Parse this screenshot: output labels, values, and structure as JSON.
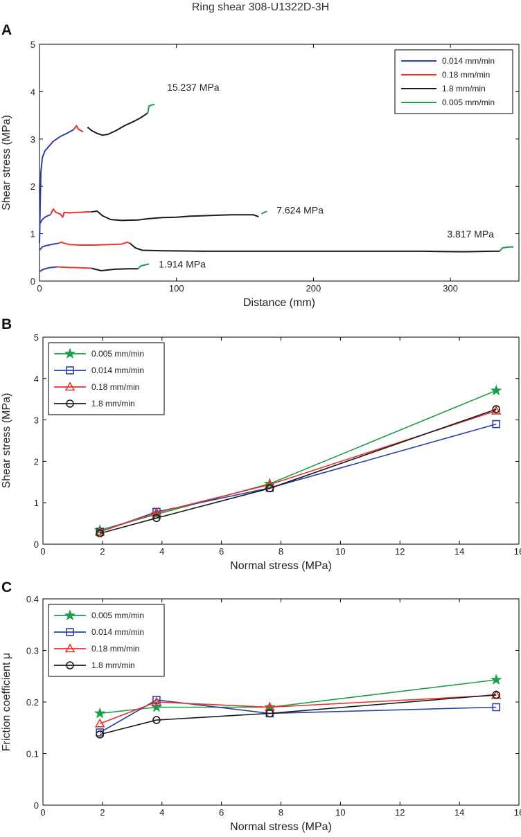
{
  "figure_title": "Ring shear 308-U1322D-3H",
  "chart_data": [
    {
      "panel": "A",
      "type": "line",
      "xlabel": "Distance (mm)",
      "ylabel": "Shear stress (MPa)",
      "xlim": [
        0,
        350
      ],
      "ylim": [
        0,
        5
      ],
      "xticks": [
        0,
        100,
        200,
        300
      ],
      "yticks": [
        0,
        1,
        2,
        3,
        4,
        5
      ],
      "legend_position": "top-right",
      "legend": [
        {
          "label": "0.014 mm/min",
          "color": "#2b3ea8"
        },
        {
          "label": "0.18 mm/min",
          "color": "#e8322b"
        },
        {
          "label": "1.8 mm/min",
          "color": "#1a1a1a"
        },
        {
          "label": "0.005 mm/min",
          "color": "#1a9e47"
        }
      ],
      "curves": [
        {
          "normal_stress_label": "15.237 MPa",
          "segments": [
            {
              "color": "#2b3ea8",
              "points": [
                [
                  0,
                  0.8
                ],
                [
                  0.5,
                  1.6
                ],
                [
                  1,
                  2.3
                ],
                [
                  2,
                  2.6
                ],
                [
                  4,
                  2.75
                ],
                [
                  7,
                  2.85
                ],
                [
                  10,
                  2.95
                ],
                [
                  15,
                  3.05
                ],
                [
                  20,
                  3.12
                ],
                [
                  25,
                  3.2
                ]
              ]
            },
            {
              "color": "#e8322b",
              "points": [
                [
                  25,
                  3.2
                ],
                [
                  27,
                  3.28
                ],
                [
                  28,
                  3.22
                ],
                [
                  30,
                  3.18
                ],
                [
                  32,
                  3.15
                ]
              ]
            },
            {
              "color": "#1a1a1a",
              "points": [
                [
                  35,
                  3.25
                ],
                [
                  38,
                  3.18
                ],
                [
                  42,
                  3.12
                ],
                [
                  46,
                  3.08
                ],
                [
                  50,
                  3.1
                ],
                [
                  56,
                  3.18
                ],
                [
                  62,
                  3.28
                ],
                [
                  68,
                  3.36
                ],
                [
                  74,
                  3.45
                ],
                [
                  79,
                  3.55
                ]
              ]
            },
            {
              "color": "#1a9e47",
              "points": [
                [
                  79,
                  3.55
                ],
                [
                  80,
                  3.7
                ],
                [
                  82,
                  3.72
                ],
                [
                  84,
                  3.73
                ]
              ]
            }
          ]
        },
        {
          "normal_stress_label": "7.624 MPa",
          "segments": [
            {
              "color": "#2b3ea8",
              "points": [
                [
                  0,
                  1.2
                ],
                [
                  2,
                  1.3
                ],
                [
                  4,
                  1.35
                ],
                [
                  6,
                  1.38
                ],
                [
                  8,
                  1.4
                ]
              ]
            },
            {
              "color": "#e8322b",
              "points": [
                [
                  8,
                  1.4
                ],
                [
                  10,
                  1.52
                ],
                [
                  12,
                  1.45
                ],
                [
                  15,
                  1.42
                ],
                [
                  17,
                  1.35
                ],
                [
                  18,
                  1.45
                ],
                [
                  22,
                  1.44
                ],
                [
                  26,
                  1.45
                ],
                [
                  30,
                  1.45
                ],
                [
                  34,
                  1.46
                ],
                [
                  38,
                  1.46
                ]
              ]
            },
            {
              "color": "#1a1a1a",
              "points": [
                [
                  38,
                  1.46
                ],
                [
                  42,
                  1.48
                ],
                [
                  46,
                  1.38
                ],
                [
                  52,
                  1.3
                ],
                [
                  60,
                  1.28
                ],
                [
                  72,
                  1.29
                ],
                [
                  80,
                  1.32
                ],
                [
                  90,
                  1.34
                ],
                [
                  100,
                  1.35
                ],
                [
                  110,
                  1.37
                ],
                [
                  120,
                  1.38
                ],
                [
                  130,
                  1.39
                ],
                [
                  140,
                  1.4
                ],
                [
                  150,
                  1.4
                ],
                [
                  156,
                  1.4
                ],
                [
                  160,
                  1.36
                ]
              ]
            },
            {
              "color": "#1a9e47",
              "points": [
                [
                  162,
                  1.42
                ],
                [
                  164,
                  1.45
                ],
                [
                  166,
                  1.47
                ]
              ]
            }
          ]
        },
        {
          "normal_stress_label": "3.817 MPa",
          "segments": [
            {
              "color": "#2b3ea8",
              "points": [
                [
                  0,
                  0.65
                ],
                [
                  2,
                  0.72
                ],
                [
                  5,
                  0.75
                ],
                [
                  10,
                  0.78
                ],
                [
                  14,
                  0.8
                ]
              ]
            },
            {
              "color": "#e8322b",
              "points": [
                [
                  14,
                  0.8
                ],
                [
                  16,
                  0.82
                ],
                [
                  18,
                  0.8
                ],
                [
                  22,
                  0.77
                ],
                [
                  30,
                  0.76
                ],
                [
                  40,
                  0.76
                ],
                [
                  50,
                  0.77
                ],
                [
                  60,
                  0.78
                ],
                [
                  64,
                  0.82
                ],
                [
                  66,
                  0.8
                ]
              ]
            },
            {
              "color": "#1a1a1a",
              "points": [
                [
                  66,
                  0.8
                ],
                [
                  70,
                  0.7
                ],
                [
                  75,
                  0.65
                ],
                [
                  90,
                  0.64
                ],
                [
                  120,
                  0.63
                ],
                [
                  160,
                  0.63
                ],
                [
                  200,
                  0.63
                ],
                [
                  240,
                  0.63
                ],
                [
                  280,
                  0.63
                ],
                [
                  310,
                  0.62
                ],
                [
                  330,
                  0.63
                ],
                [
                  336,
                  0.63
                ]
              ]
            },
            {
              "color": "#1a9e47",
              "points": [
                [
                  336,
                  0.63
                ],
                [
                  338,
                  0.7
                ],
                [
                  342,
                  0.72
                ],
                [
                  346,
                  0.72
                ]
              ]
            }
          ]
        },
        {
          "normal_stress_label": "1.914 MPa",
          "segments": [
            {
              "color": "#2b3ea8",
              "points": [
                [
                  0,
                  0.2
                ],
                [
                  3,
                  0.25
                ],
                [
                  7,
                  0.28
                ],
                [
                  13,
                  0.3
                ]
              ]
            },
            {
              "color": "#e8322b",
              "points": [
                [
                  13,
                  0.3
                ],
                [
                  20,
                  0.29
                ],
                [
                  30,
                  0.28
                ],
                [
                  38,
                  0.27
                ]
              ]
            },
            {
              "color": "#1a1a1a",
              "points": [
                [
                  38,
                  0.27
                ],
                [
                  45,
                  0.22
                ],
                [
                  55,
                  0.25
                ],
                [
                  65,
                  0.26
                ],
                [
                  72,
                  0.26
                ]
              ]
            },
            {
              "color": "#1a9e47",
              "points": [
                [
                  72,
                  0.26
                ],
                [
                  74,
                  0.32
                ],
                [
                  78,
                  0.35
                ],
                [
                  80,
                  0.36
                ]
              ]
            }
          ]
        }
      ]
    },
    {
      "panel": "B",
      "type": "line",
      "xlabel": "Normal stress (MPa)",
      "ylabel": "Shear stress (MPa)",
      "xlim": [
        0,
        16
      ],
      "ylim": [
        0,
        5
      ],
      "xticks": [
        0,
        2,
        4,
        6,
        8,
        10,
        12,
        14,
        16
      ],
      "yticks": [
        0,
        1,
        2,
        3,
        4,
        5
      ],
      "legend_position": "top-left",
      "x": [
        1.914,
        3.817,
        7.624,
        15.237
      ],
      "series": [
        {
          "name": "0.005 mm/min",
          "color": "#1a9e47",
          "marker": "star",
          "values": [
            0.34,
            0.72,
            1.46,
            3.71
          ]
        },
        {
          "name": "0.014 mm/min",
          "color": "#2b3ea8",
          "marker": "square",
          "values": [
            0.3,
            0.78,
            1.36,
            2.9
          ]
        },
        {
          "name": "0.18 mm/min",
          "color": "#e8322b",
          "marker": "triangle",
          "values": [
            0.3,
            0.76,
            1.44,
            3.22
          ]
        },
        {
          "name": "1.8 mm/min",
          "color": "#1a1a1a",
          "marker": "circle",
          "values": [
            0.26,
            0.63,
            1.35,
            3.26
          ]
        }
      ]
    },
    {
      "panel": "C",
      "type": "line",
      "xlabel": "Normal stress (MPa)",
      "ylabel": "Friction coefficient μ",
      "xlim": [
        0,
        16
      ],
      "ylim": [
        0,
        0.4
      ],
      "xticks": [
        0,
        2,
        4,
        6,
        8,
        10,
        12,
        14,
        16
      ],
      "yticks": [
        0,
        0.1,
        0.2,
        0.3,
        0.4
      ],
      "legend_position": "top-left",
      "x": [
        1.914,
        3.817,
        7.624,
        15.237
      ],
      "series": [
        {
          "name": "0.005 mm/min",
          "color": "#1a9e47",
          "marker": "star",
          "values": [
            0.178,
            0.19,
            0.19,
            0.243
          ]
        },
        {
          "name": "0.014 mm/min",
          "color": "#2b3ea8",
          "marker": "square",
          "values": [
            0.141,
            0.204,
            0.178,
            0.19
          ]
        },
        {
          "name": "0.18 mm/min",
          "color": "#e8322b",
          "marker": "triangle",
          "values": [
            0.158,
            0.2,
            0.19,
            0.213
          ]
        },
        {
          "name": "1.8 mm/min",
          "color": "#1a1a1a",
          "marker": "circle",
          "values": [
            0.137,
            0.165,
            0.178,
            0.214
          ]
        }
      ]
    }
  ]
}
